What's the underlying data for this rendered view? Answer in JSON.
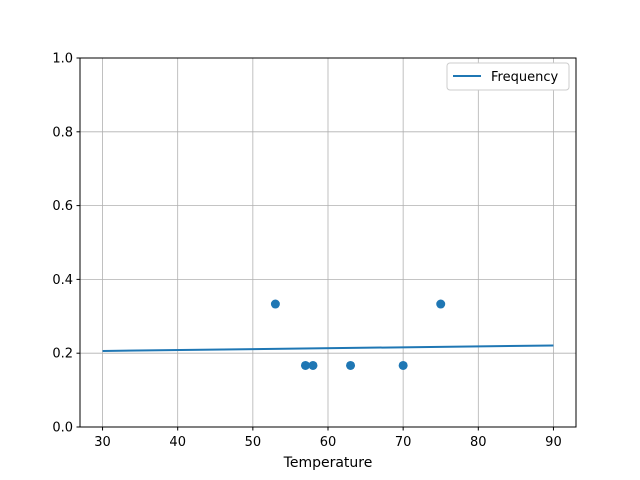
{
  "chart_data": {
    "type": "scatter",
    "title": "",
    "xlabel": "Temperature",
    "ylabel": "",
    "xlim": [
      27,
      93
    ],
    "ylim": [
      0,
      1
    ],
    "xticks": [
      30,
      40,
      50,
      60,
      70,
      80,
      90
    ],
    "yticks": [
      "0.0",
      "0.2",
      "0.4",
      "0.6",
      "0.8",
      "1.0"
    ],
    "grid": true,
    "legend_position": "top-right",
    "color": "#1f77b4",
    "scatter": {
      "x": [
        53,
        57,
        58,
        63,
        70,
        75
      ],
      "y": [
        0.3333,
        0.1667,
        0.1667,
        0.1667,
        0.1667,
        0.3333
      ]
    },
    "line": {
      "name": "Frequency",
      "x": [
        30,
        90
      ],
      "y": [
        0.206,
        0.221
      ]
    }
  }
}
